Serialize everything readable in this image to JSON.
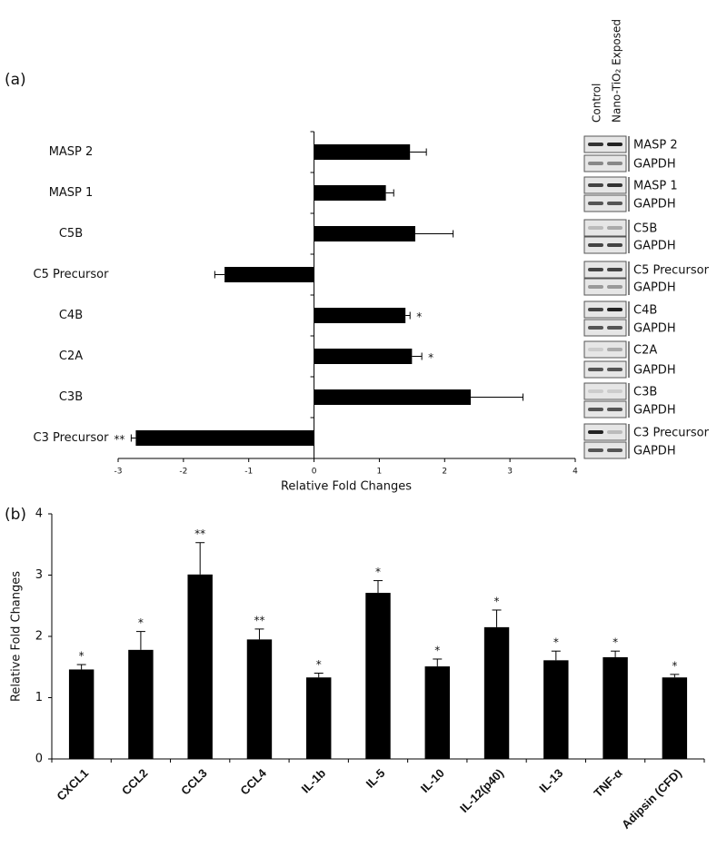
{
  "chart_data": [
    {
      "type": "hbar",
      "panel_label": "(a)",
      "x_label": "Relative Fold Changes",
      "categories": [
        "MASP 2",
        "MASP 1",
        "C5B",
        "C5 Precursor",
        "C4B",
        "C2A",
        "C3B",
        "C3 Precursor"
      ],
      "values": [
        1.47,
        1.1,
        1.55,
        -1.37,
        1.4,
        1.5,
        2.4,
        -2.73
      ],
      "errors": [
        0.25,
        0.12,
        0.58,
        0.15,
        0.07,
        0.15,
        0.8,
        0.07
      ],
      "significance": [
        null,
        null,
        null,
        null,
        "*",
        "*",
        null,
        "**"
      ],
      "color": "#000000",
      "xlim": [
        -3,
        4
      ],
      "xticks": [
        -3,
        -2,
        -1,
        0,
        1,
        2,
        3,
        4
      ]
    },
    {
      "type": "bar",
      "panel_label": "(b)",
      "y_label": "Relative Fold Changes",
      "categories": [
        "CXCL1",
        "CCL2",
        "CCL3",
        "CCL4",
        "IL-1b",
        "IL-5",
        "IL-10",
        "IL-12(p40)",
        "IL-13",
        "TNF-α",
        "Adipsin (CFD)"
      ],
      "values": [
        1.46,
        1.78,
        3.01,
        1.95,
        1.33,
        2.71,
        1.51,
        2.15,
        1.61,
        1.66,
        1.33
      ],
      "errors": [
        0.08,
        0.3,
        0.52,
        0.17,
        0.07,
        0.2,
        0.12,
        0.28,
        0.15,
        0.1,
        0.05
      ],
      "significance": [
        "*",
        "*",
        "**",
        "**",
        "*",
        "*",
        "*",
        "*",
        "*",
        "*",
        "*"
      ],
      "color": "#000000",
      "ylim": [
        0,
        4
      ],
      "yticks": [
        0,
        1,
        2,
        3,
        4
      ]
    }
  ],
  "blot_panel": {
    "column_headers": [
      "Control",
      "Nano-TiO₂ Exposed"
    ],
    "labels": [
      "MASP 2",
      "GAPDH",
      "MASP 1",
      "GAPDH",
      "C5B",
      "GAPDH",
      "C5 Precursor",
      "GAPDH",
      "C4B",
      "GAPDH",
      "C2A",
      "GAPDH",
      "C3B",
      "GAPDH",
      "C3 Precursor",
      "GAPDH"
    ]
  }
}
